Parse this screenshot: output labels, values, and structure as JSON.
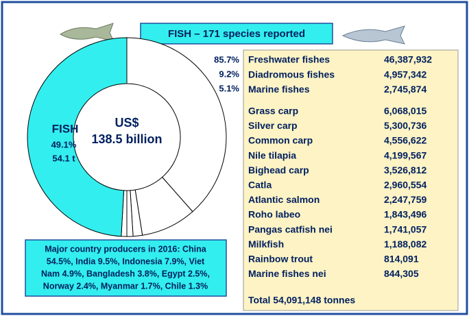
{
  "chart_data": {
    "type": "donut",
    "values": [
      38.5,
      9.0,
      1.5,
      1.0,
      0.9,
      49.1
    ],
    "value_labels": [
      null,
      null,
      null,
      null,
      null,
      "49.1%"
    ],
    "colors": [
      "#ffffff",
      "#ffffff",
      "#ffffff",
      "#ffffff",
      "#ffffff",
      "#33eeee"
    ],
    "center_label": [
      "US$",
      "138.5 billion"
    ],
    "segment_name": "FISH",
    "segment_note": "54.1 t"
  },
  "banner": "FISH – 171 species reported",
  "shares": [
    "85.7%",
    "9.2%",
    "5.1%"
  ],
  "table": {
    "groups": [
      [
        [
          "Freshwater fishes",
          "46,387,932"
        ],
        [
          "Diadromous fishes",
          "4,957,342"
        ],
        [
          "Marine fishes",
          "2,745,874"
        ]
      ],
      [
        [
          "Grass carp",
          "6,068,015"
        ],
        [
          "Silver carp",
          "5,300,736"
        ],
        [
          "Common carp",
          "4,556,622"
        ],
        [
          "Nile tilapia",
          "4,199,567"
        ],
        [
          "Bighead carp",
          "3,526,812"
        ],
        [
          "Catla",
          "2,960,554"
        ],
        [
          "Atlantic salmon",
          "2,247,759"
        ],
        [
          "Roho labeo",
          "1,843,496"
        ],
        [
          "Pangas catfish nei",
          "1,741,057"
        ],
        [
          "Milkfish",
          "1,188,082"
        ],
        [
          "Rainbow trout",
          "814,091"
        ],
        [
          "Marine fishes nei",
          "844,305"
        ]
      ]
    ],
    "total": "Total 54,091,148 tonnes"
  },
  "note": [
    "Major country producers in 2016: China",
    "54.5%, India 9.5%, Indonesia 7.9%, Viet",
    "Nam 4.9%, Bangladesh 3.8%, Egypt 2.5%,",
    "Norway 2.4%, Myanmar 1.7%, Chile 1.3%"
  ]
}
